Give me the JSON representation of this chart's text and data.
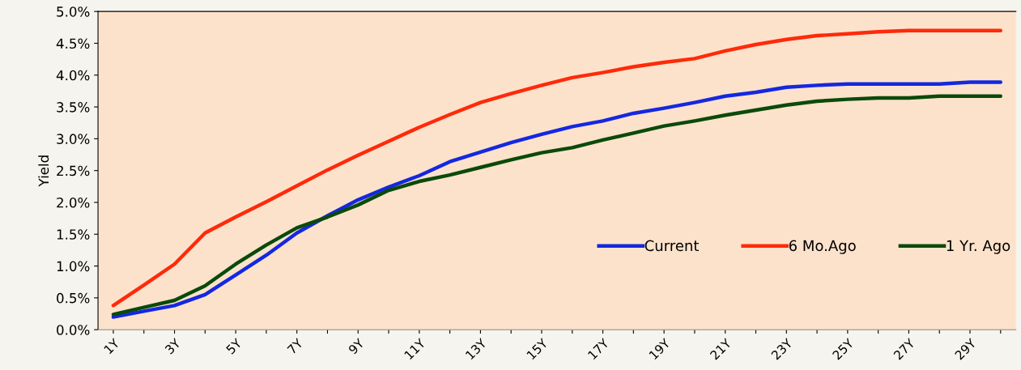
{
  "chart_data": {
    "type": "line",
    "ylabel": "Yield",
    "categories": [
      "1Y",
      null,
      "3Y",
      null,
      "5Y",
      null,
      "7Y",
      null,
      "9Y",
      null,
      "11Y",
      null,
      "13Y",
      null,
      "15Y",
      null,
      "17Y",
      null,
      "19Y",
      null,
      "21Y",
      null,
      "23Y",
      null,
      "25Y",
      null,
      "27Y",
      null,
      "29Y",
      null
    ],
    "series": [
      {
        "name": "Current",
        "color": "#1428e0",
        "values": [
          0.2,
          0.29,
          0.38,
          0.55,
          0.86,
          1.17,
          1.52,
          1.79,
          2.04,
          2.24,
          2.42,
          2.64,
          2.79,
          2.94,
          3.07,
          3.19,
          3.28,
          3.4,
          3.48,
          3.57,
          3.67,
          3.73,
          3.81,
          3.84,
          3.86,
          3.86,
          3.86,
          3.86,
          3.89,
          3.89
        ]
      },
      {
        "name": "6 Mo.Ago",
        "color": "#ff2a0a",
        "values": [
          0.38,
          0.7,
          1.03,
          1.52,
          1.77,
          2.01,
          2.26,
          2.51,
          2.74,
          2.96,
          3.18,
          3.38,
          3.57,
          3.71,
          3.84,
          3.96,
          4.04,
          4.13,
          4.2,
          4.26,
          4.38,
          4.48,
          4.56,
          4.62,
          4.65,
          4.68,
          4.7,
          4.7,
          4.7,
          4.7
        ]
      },
      {
        "name": "1 Yr. Ago",
        "color": "#0a4a0a",
        "values": [
          0.24,
          0.35,
          0.46,
          0.69,
          1.03,
          1.33,
          1.6,
          1.77,
          1.96,
          2.19,
          2.33,
          2.43,
          2.55,
          2.67,
          2.78,
          2.86,
          2.98,
          3.09,
          3.2,
          3.28,
          3.37,
          3.45,
          3.53,
          3.59,
          3.62,
          3.64,
          3.64,
          3.67,
          3.67,
          3.67
        ]
      }
    ],
    "ylim": [
      0,
      5
    ],
    "yticks": [
      {
        "value": 0,
        "label": "0.0%"
      },
      {
        "value": 0.5,
        "label": "0.5%"
      },
      {
        "value": 1,
        "label": "1.0%"
      },
      {
        "value": 1.5,
        "label": "1.5%"
      },
      {
        "value": 2,
        "label": "2.0%"
      },
      {
        "value": 2.5,
        "label": "2.5%"
      },
      {
        "value": 3,
        "label": "3.0%"
      },
      {
        "value": 3.5,
        "label": "3.5%"
      },
      {
        "value": 4,
        "label": "4.0%"
      },
      {
        "value": 4.5,
        "label": "4.5%"
      },
      {
        "value": 5,
        "label": "5.0%"
      }
    ],
    "legend": "right",
    "grid": false,
    "line_style": "solid",
    "marker": "none"
  }
}
